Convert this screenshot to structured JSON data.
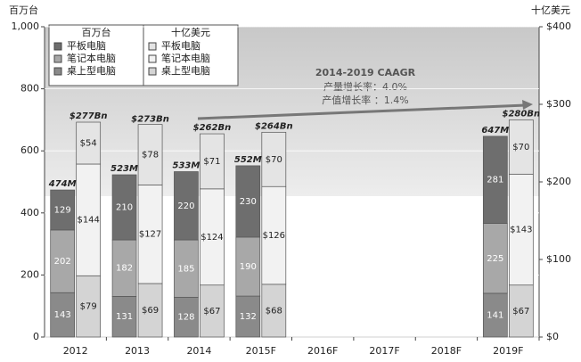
{
  "chart_data": {
    "type": "bar",
    "ylabel": "百万台",
    "y2label": "十亿美元",
    "categories": [
      "2012",
      "2013",
      "2014",
      "2015F",
      "2016F",
      "2017F",
      "2018F",
      "2019F"
    ],
    "ylim": [
      0,
      1000
    ],
    "yticks": [
      0,
      200,
      400,
      600,
      800,
      {
        "value": 1000,
        "label": "1,000"
      }
    ],
    "y2lim": [
      0,
      400
    ],
    "y2ticks": [
      {
        "value": 0,
        "label": "$0"
      },
      {
        "value": 100,
        "label": "$100"
      },
      {
        "value": 200,
        "label": "$200"
      },
      {
        "value": 300,
        "label": "$300"
      },
      {
        "value": 400,
        "label": "$400"
      }
    ],
    "grid": true,
    "series": [
      {
        "name": "平板电脑",
        "color": "#6e6e6e",
        "axis": "y",
        "values": [
          129,
          210,
          220,
          230,
          null,
          null,
          null,
          281
        ]
      },
      {
        "name": "笔记本电脑",
        "color": "#a8a8a8",
        "axis": "y",
        "values": [
          202,
          182,
          185,
          190,
          null,
          null,
          null,
          225
        ]
      },
      {
        "name": "桌上型电脑",
        "color": "#8a8a8a",
        "axis": "y",
        "values": [
          143,
          131,
          128,
          132,
          null,
          null,
          null,
          141
        ]
      },
      {
        "name": "平板电脑",
        "color": "#e4e4e4",
        "axis": "y2",
        "values": [
          54,
          78,
          71,
          70,
          null,
          null,
          null,
          70
        ],
        "value_labels": [
          "$54",
          "$78",
          "$71",
          "$70",
          null,
          null,
          null,
          "$70"
        ]
      },
      {
        "name": "笔记本电脑",
        "color": "#f2f2f2",
        "axis": "y2",
        "values": [
          144,
          127,
          124,
          126,
          null,
          null,
          null,
          143
        ],
        "value_labels": [
          "$144",
          "$127",
          "$124",
          "$126",
          null,
          null,
          null,
          "$143"
        ]
      },
      {
        "name": "桌上型电脑",
        "color": "#d4d4d4",
        "axis": "y2",
        "values": [
          79,
          69,
          67,
          68,
          null,
          null,
          null,
          67
        ],
        "value_labels": [
          "$79",
          "$69",
          "$67",
          "$68",
          null,
          null,
          null,
          "$67"
        ]
      }
    ],
    "totals": [
      {
        "axis": "y",
        "values": [
          474,
          523,
          533,
          552,
          null,
          null,
          null,
          647
        ],
        "value_labels": [
          "474M",
          "523M",
          "533M",
          "552M",
          null,
          null,
          null,
          "647M"
        ]
      },
      {
        "axis": "y2",
        "values": [
          277,
          273,
          262,
          264,
          null,
          null,
          null,
          280
        ],
        "value_labels": [
          "$277Bn",
          "$273Bn",
          "$262Bn",
          "$264Bn",
          null,
          null,
          null,
          "$280Bn"
        ]
      }
    ],
    "annotation": {
      "title": "2014-2019 CAAGR",
      "lines": [
        "产量增长率：4.0%",
        "产值增长率 ：1.4%"
      ]
    }
  }
}
